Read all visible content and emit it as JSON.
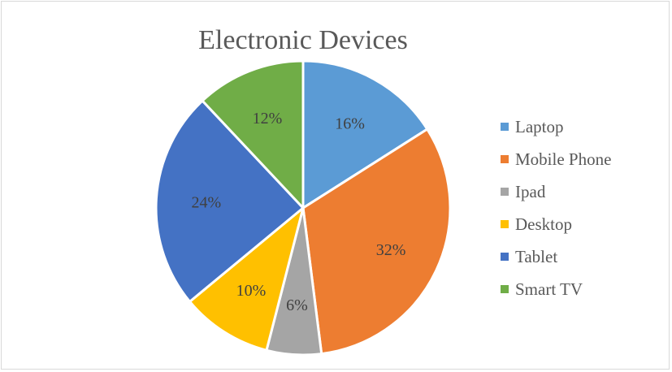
{
  "chart_data": {
    "type": "pie",
    "title": "Electronic Devices",
    "legend_position": "right",
    "labels_format": "percent",
    "slices": [
      {
        "label": "Laptop",
        "value": 16,
        "data_label": "16%",
        "color": "#5b9bd5"
      },
      {
        "label": "Mobile Phone",
        "value": 32,
        "data_label": "32%",
        "color": "#ed7d31"
      },
      {
        "label": "Ipad",
        "value": 6,
        "data_label": "6%",
        "color": "#a5a5a5"
      },
      {
        "label": "Desktop",
        "value": 10,
        "data_label": "10%",
        "color": "#ffc000"
      },
      {
        "label": "Tablet",
        "value": 24,
        "data_label": "24%",
        "color": "#4472c4"
      },
      {
        "label": "Smart TV",
        "value": 12,
        "data_label": "12%",
        "color": "#70ad47"
      }
    ]
  }
}
